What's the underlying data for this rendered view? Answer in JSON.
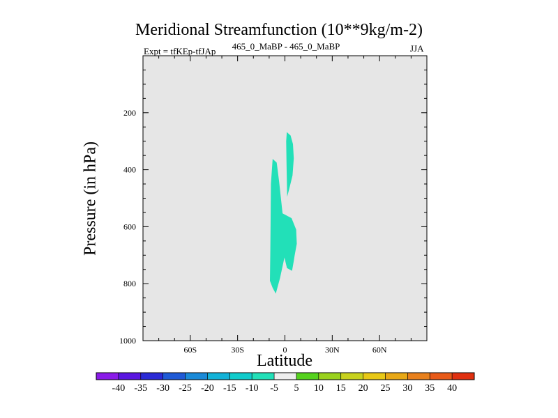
{
  "chart_data": {
    "type": "contour",
    "title": "Meridional Streamfunction (10**9kg/m-2)",
    "subtitle_left": "Expt = tfKEp-tfJAp",
    "subtitle_center": "465_0_MaBP - 465_0_MaBP",
    "subtitle_right": "JJA",
    "xlabel": "Latitude",
    "ylabel": "Pressure (in hPa)",
    "xlim": [
      -90,
      90
    ],
    "ylim": [
      1000,
      0
    ],
    "x_ticks": [
      {
        "value": -60,
        "label": "60S"
      },
      {
        "value": -30,
        "label": "30S"
      },
      {
        "value": 0,
        "label": "0"
      },
      {
        "value": 30,
        "label": "30N"
      },
      {
        "value": 60,
        "label": "60N"
      }
    ],
    "y_ticks": [
      {
        "value": 200,
        "label": "200"
      },
      {
        "value": 400,
        "label": "400"
      },
      {
        "value": 600,
        "label": "600"
      },
      {
        "value": 800,
        "label": "800"
      },
      {
        "value": 1000,
        "label": "1000"
      }
    ],
    "background_fill": "#e6e6e6",
    "regions": [
      {
        "level": "-10 to -5",
        "color": "#22e0b8",
        "points": [
          [
            -7.8,
            362
          ],
          [
            -5.2,
            375
          ],
          [
            -3.7,
            440
          ],
          [
            -1.5,
            553
          ],
          [
            4.2,
            570
          ],
          [
            7.1,
            610
          ],
          [
            7.5,
            660
          ],
          [
            6.2,
            700
          ],
          [
            5.6,
            720
          ],
          [
            4.5,
            755
          ],
          [
            1.3,
            745
          ],
          [
            -0.3,
            708
          ],
          [
            -3.1,
            780
          ],
          [
            -5.8,
            835
          ],
          [
            -7.8,
            815
          ],
          [
            -9.5,
            790
          ],
          [
            -9.3,
            700
          ],
          [
            -9.1,
            600
          ],
          [
            -8.9,
            450
          ]
        ]
      },
      {
        "level": "-10 to -5",
        "color": "#22e0b8",
        "points": [
          [
            1.2,
            268
          ],
          [
            3.6,
            280
          ],
          [
            5.1,
            310
          ],
          [
            5.6,
            360
          ],
          [
            4.8,
            420
          ],
          [
            2.7,
            468
          ],
          [
            1.4,
            495
          ],
          [
            1.3,
            455
          ],
          [
            1.0,
            380
          ],
          [
            0.8,
            300
          ]
        ]
      }
    ],
    "colorbar": {
      "labels": [
        "-40",
        "-35",
        "-30",
        "-25",
        "-20",
        "-15",
        "-10",
        "-5",
        "5",
        "10",
        "15",
        "20",
        "25",
        "30",
        "35",
        "40"
      ],
      "colors": [
        "#8a1be8",
        "#5a16e0",
        "#2b2ad6",
        "#1f5ad6",
        "#1a8ad8",
        "#12b2d8",
        "#10cccc",
        "#22e0b8",
        "#eeeeee",
        "#55d21e",
        "#9ad21e",
        "#c8d21e",
        "#e8c816",
        "#e8a816",
        "#e8801c",
        "#e85a18",
        "#e03010"
      ]
    }
  }
}
